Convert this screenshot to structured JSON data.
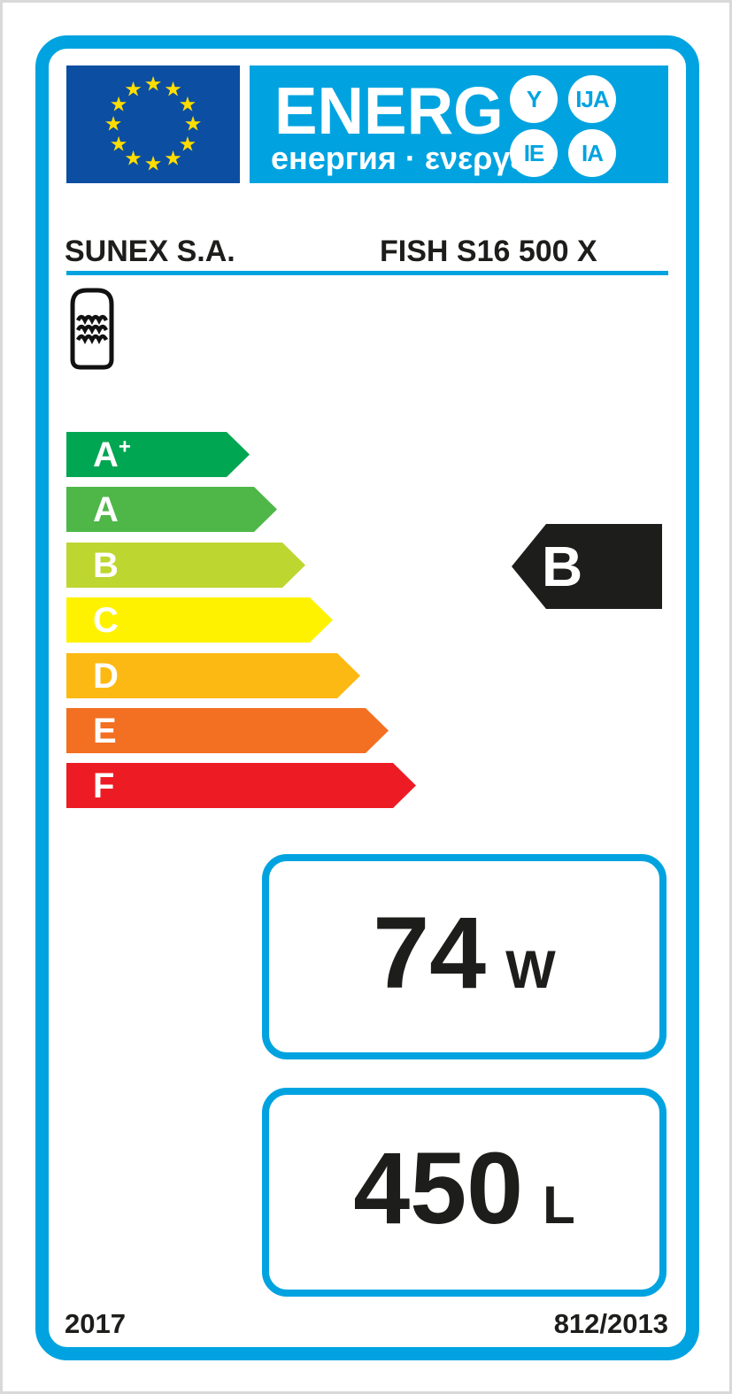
{
  "header": {
    "logo_text": "ENERG",
    "logo_subtext": "енергия · ενεργεια",
    "badges": [
      "Y",
      "IJA",
      "IE",
      "IA"
    ],
    "eu_flag_star_count": 12
  },
  "product": {
    "supplier": "SUNEX S.A.",
    "model": "FISH S16 500 X"
  },
  "icons": {
    "tank": "hot-water-storage-tank-icon"
  },
  "rating": {
    "selected_grade": "B",
    "scale": [
      {
        "grade": "A",
        "superscript": "+",
        "color": "#00a651"
      },
      {
        "grade": "A",
        "superscript": "",
        "color": "#4eb748"
      },
      {
        "grade": "B",
        "superscript": "",
        "color": "#bed630"
      },
      {
        "grade": "C",
        "superscript": "",
        "color": "#fff200"
      },
      {
        "grade": "D",
        "superscript": "",
        "color": "#fdb913"
      },
      {
        "grade": "E",
        "superscript": "",
        "color": "#f36f21"
      },
      {
        "grade": "F",
        "superscript": "",
        "color": "#ed1c24"
      }
    ]
  },
  "metrics": {
    "standing_loss": {
      "value": "74",
      "unit": "W"
    },
    "storage_volume": {
      "value": "450",
      "unit": "L"
    }
  },
  "footer": {
    "year": "2017",
    "regulation": "812/2013"
  },
  "colors": {
    "accent_cyan": "#00a3e0",
    "eu_blue": "#0b4ea2",
    "star_yellow": "#ffdd00",
    "indicator_black": "#1d1d1b"
  }
}
